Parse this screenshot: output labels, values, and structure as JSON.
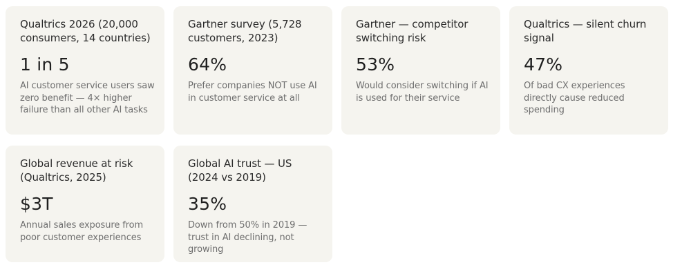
{
  "cards": [
    {
      "title": "Qualtrics 2026 (20,000 consumers, 14 countries)",
      "stat": "1 in 5",
      "description": "AI customer service users saw zero benefit — 4× higher failure than all other AI tasks"
    },
    {
      "title": "Gartner survey (5,728 customers, 2023)",
      "stat": "64%",
      "description": "Prefer companies NOT use AI in customer service at all"
    },
    {
      "title": "Gartner — competitor switching risk",
      "stat": "53%",
      "description": "Would consider switching if AI is used for their service"
    },
    {
      "title": "Qualtrics — silent churn signal",
      "stat": "47%",
      "description": "Of bad CX experiences directly cause reduced spending"
    },
    {
      "title": "Global revenue at risk (Qualtrics, 2025)",
      "stat": "$3T",
      "description": "Annual sales exposure from poor customer experiences"
    },
    {
      "title": "Global AI trust — US (2024 vs 2019)",
      "stat": "35%",
      "description": "Down from 50% in 2019 — trust in AI declining, not growing"
    }
  ]
}
